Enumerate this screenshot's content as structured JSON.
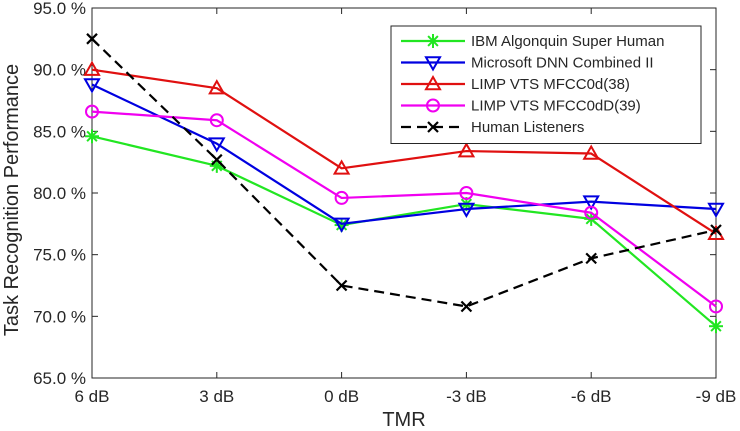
{
  "chart_data": {
    "type": "line",
    "xlabel": "TMR",
    "ylabel": "Task Recognition Performance",
    "categories": [
      "6 dB",
      "3 dB",
      "0 dB",
      "-3 dB",
      "-6 dB",
      "-9 dB"
    ],
    "ylim": [
      65,
      95
    ],
    "yticks": [
      65,
      70,
      75,
      80,
      85,
      90,
      95
    ],
    "ytick_labels": [
      "65.0 %",
      "70.0 %",
      "75.0 %",
      "80.0 %",
      "85.0 %",
      "90.0 %",
      "95.0 %"
    ],
    "grid": false,
    "legend_position": "top-right",
    "series": [
      {
        "name": "IBM Algonquin Super Human",
        "color": "#22e622",
        "marker": "asterisk",
        "dash": "solid",
        "values": [
          84.6,
          82.2,
          77.4,
          79.1,
          77.9,
          69.2
        ]
      },
      {
        "name": "Microsoft DNN Combined II",
        "color": "#0000e0",
        "marker": "triangle-down",
        "dash": "solid",
        "values": [
          88.8,
          84.0,
          77.5,
          78.7,
          79.3,
          78.7
        ]
      },
      {
        "name": "LIMP VTS MFCC0d(38)",
        "color": "#e01010",
        "marker": "triangle-up",
        "dash": "solid",
        "values": [
          90.0,
          88.5,
          82.0,
          83.4,
          83.2,
          76.7
        ]
      },
      {
        "name": "LIMP VTS MFCC0dD(39)",
        "color": "#f000f0",
        "marker": "circle",
        "dash": "solid",
        "values": [
          86.6,
          85.9,
          79.6,
          80.0,
          78.4,
          70.8
        ]
      },
      {
        "name": "Human Listeners",
        "color": "#000000",
        "marker": "x",
        "dash": "dashed",
        "values": [
          92.5,
          82.7,
          72.5,
          70.8,
          74.7,
          77.0
        ]
      }
    ]
  }
}
